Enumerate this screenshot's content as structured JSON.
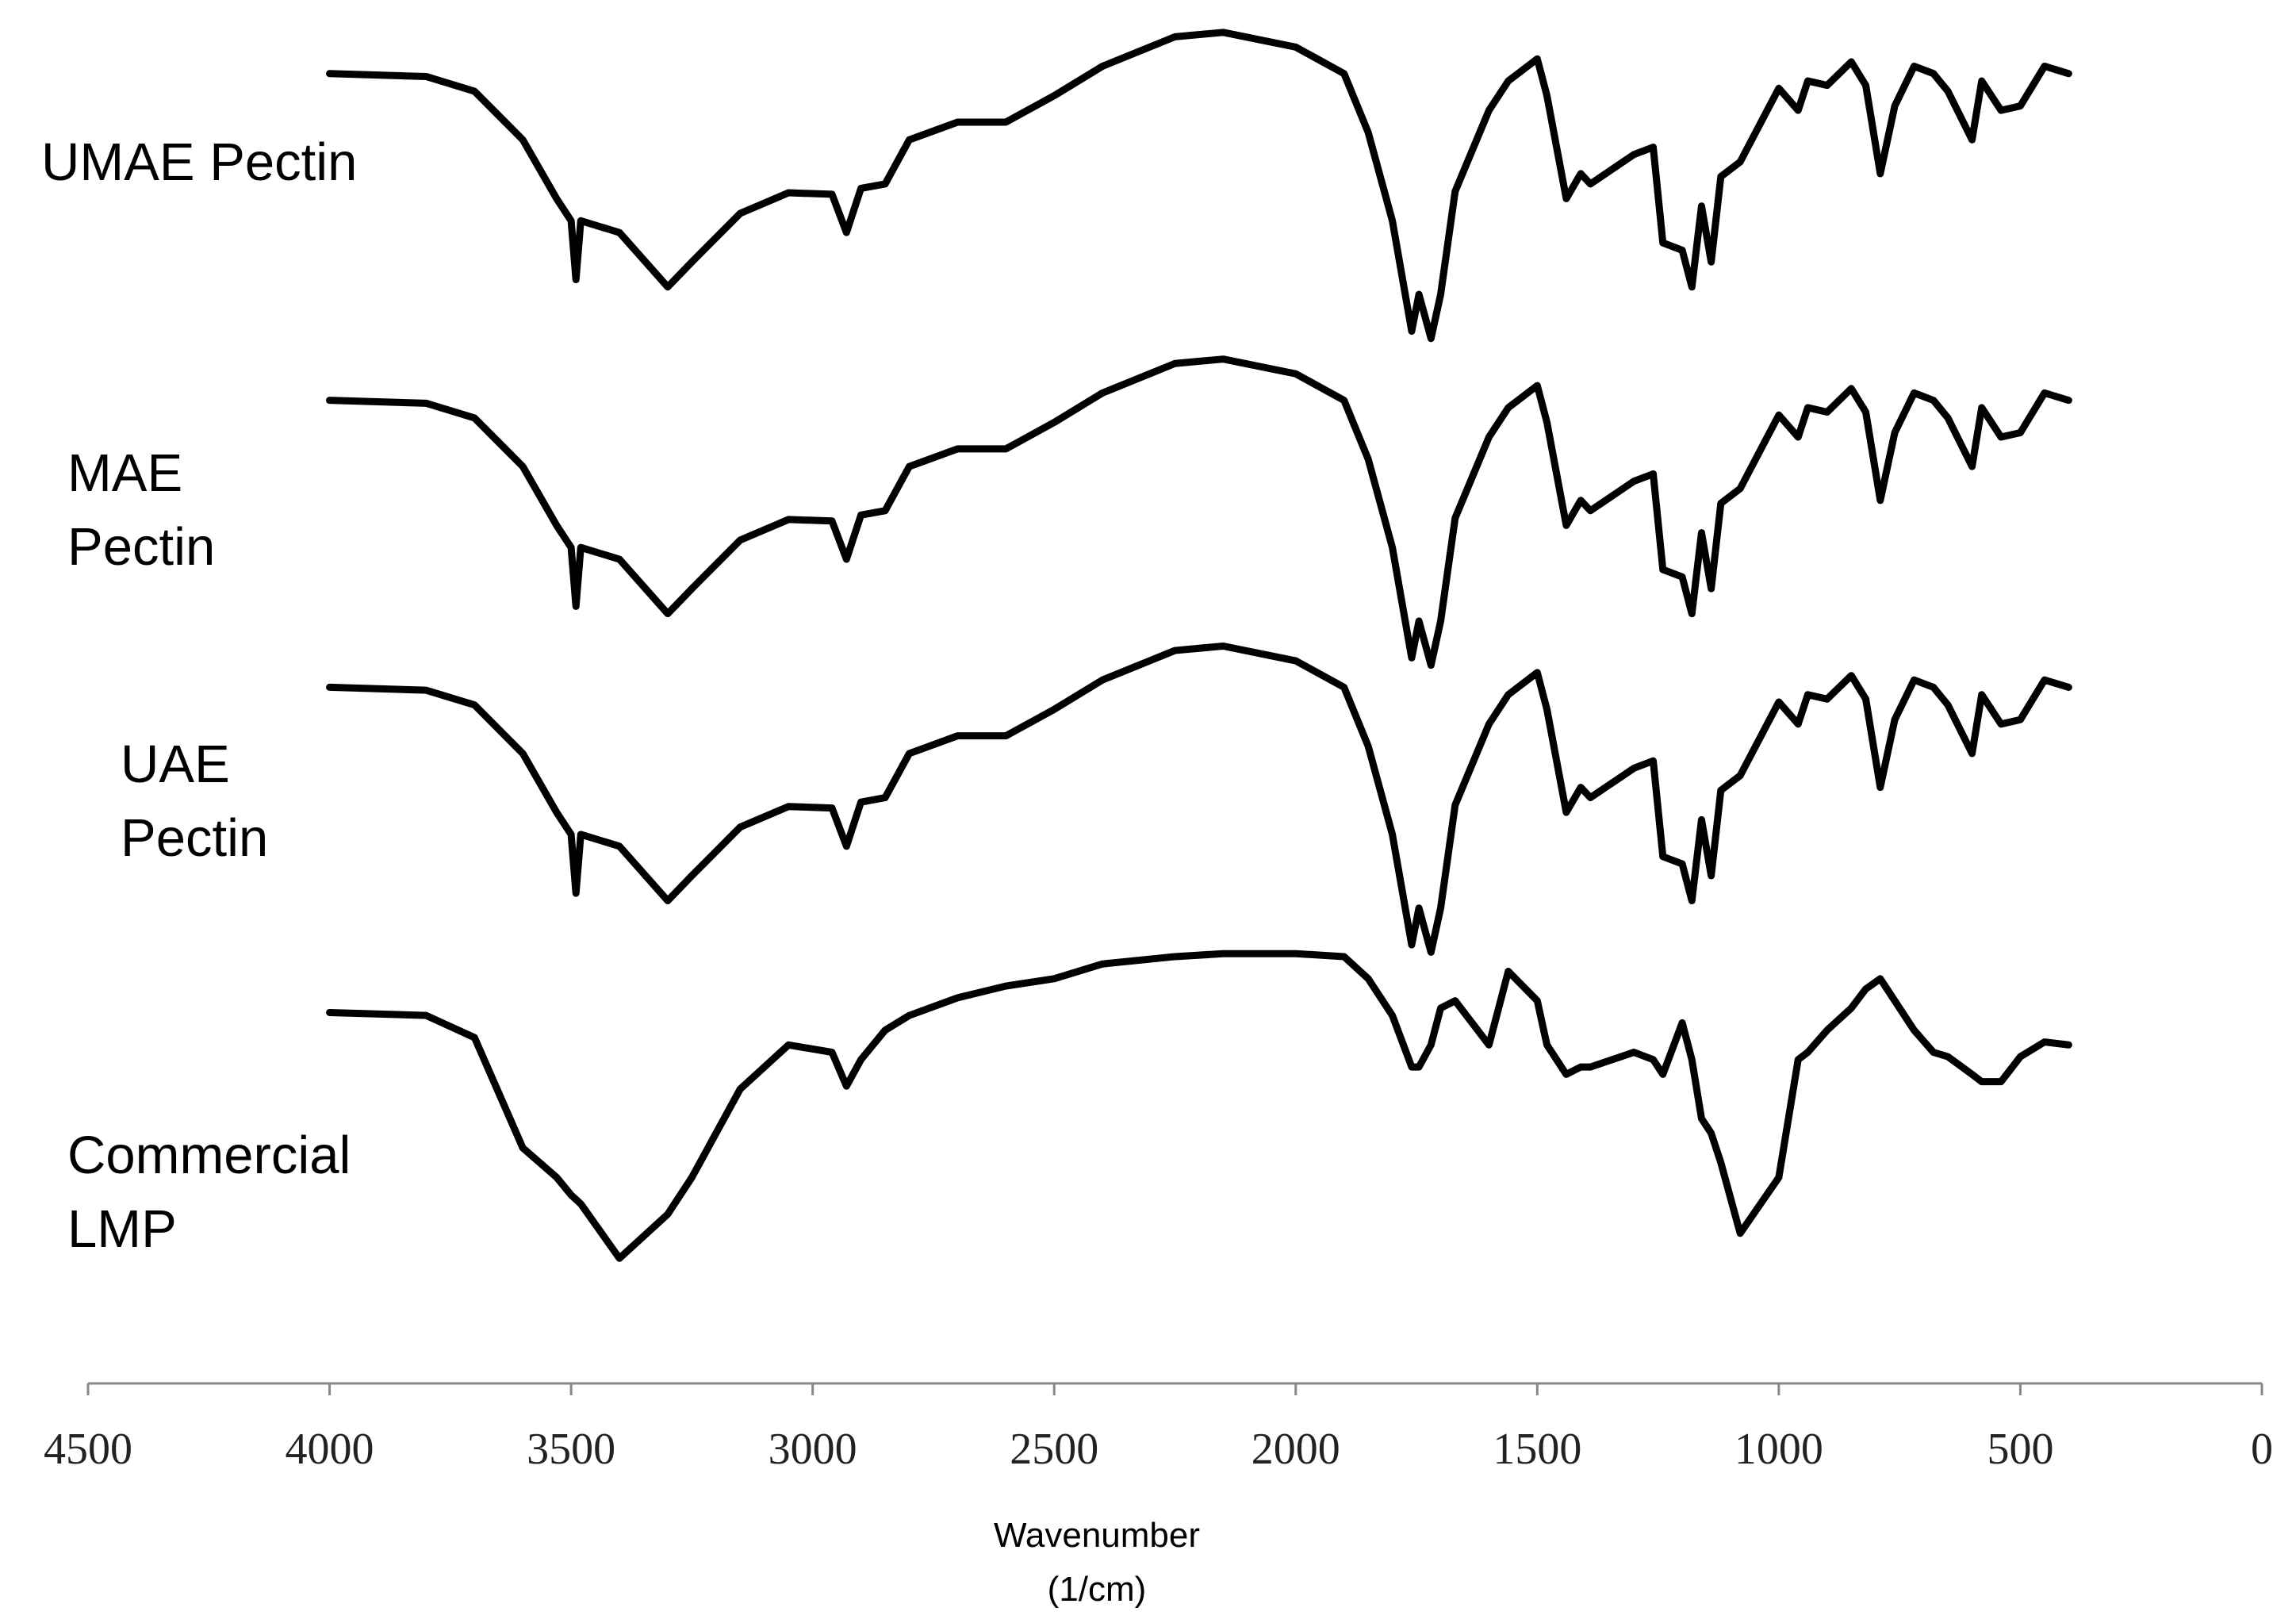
{
  "chart_data": {
    "type": "line",
    "x_label": "Wavenumber\n(1/cm)",
    "x": [
      4000,
      3800,
      3700,
      3600,
      3530,
      3500,
      3490,
      3480,
      3400,
      3300,
      3250,
      3150,
      3050,
      2960,
      2930,
      2900,
      2850,
      2800,
      2700,
      2600,
      2500,
      2400,
      2250,
      2150,
      2000,
      1900,
      1850,
      1800,
      1760,
      1745,
      1720,
      1700,
      1670,
      1600,
      1560,
      1500,
      1480,
      1440,
      1410,
      1390,
      1300,
      1260,
      1240,
      1200,
      1180,
      1160,
      1140,
      1120,
      1080,
      1000,
      960,
      940,
      900,
      850,
      820,
      790,
      760,
      720,
      680,
      650,
      600,
      580,
      540,
      500,
      450,
      400
    ],
    "series": [
      {
        "name": "UMAE Pectin",
        "color": "#000000",
        "values": [
          890,
          888,
          878,
          845,
          805,
          790,
          750,
          790,
          782,
          745,
          762,
          795,
          809,
          808,
          782,
          812,
          815,
          845,
          857,
          857,
          875,
          895,
          915,
          918,
          908,
          890,
          850,
          790,
          715,
          740,
          710,
          740,
          810,
          865,
          885,
          900,
          875,
          805,
          822,
          815,
          835,
          840,
          775,
          770,
          745,
          800,
          762,
          820,
          830,
          880,
          865,
          885,
          882,
          898,
          882,
          822,
          868,
          895,
          890,
          878,
          845,
          885,
          865,
          868,
          895,
          890
        ]
      },
      {
        "name": "MAE\nPectin",
        "color": "#000000",
        "values": [
          668,
          666,
          656,
          623,
          583,
          568,
          528,
          568,
          560,
          523,
          540,
          573,
          587,
          586,
          560,
          590,
          593,
          623,
          635,
          635,
          653,
          673,
          693,
          696,
          686,
          668,
          628,
          568,
          493,
          518,
          488,
          518,
          588,
          643,
          663,
          678,
          653,
          583,
          600,
          593,
          613,
          618,
          553,
          548,
          523,
          578,
          540,
          598,
          608,
          658,
          643,
          663,
          660,
          676,
          660,
          600,
          646,
          673,
          668,
          656,
          623,
          663,
          643,
          646,
          673,
          668
        ]
      },
      {
        "name": "UAE\nPectin",
        "color": "#000000",
        "values": [
          473,
          471,
          461,
          428,
          388,
          373,
          333,
          373,
          365,
          328,
          345,
          378,
          392,
          391,
          365,
          395,
          398,
          428,
          440,
          440,
          458,
          478,
          498,
          501,
          491,
          473,
          433,
          373,
          298,
          323,
          293,
          323,
          393,
          448,
          468,
          483,
          458,
          388,
          405,
          398,
          418,
          423,
          358,
          353,
          328,
          383,
          345,
          403,
          413,
          463,
          448,
          468,
          465,
          481,
          465,
          405,
          451,
          478,
          473,
          461,
          428,
          468,
          448,
          451,
          478,
          473
        ]
      },
      {
        "name": "Commercial\nLMP",
        "color": "#000000",
        "values": [
          252,
          250,
          235,
          160,
          140,
          128,
          125,
          122,
          85,
          115,
          140,
          200,
          230,
          225,
          202,
          220,
          240,
          250,
          262,
          270,
          275,
          285,
          290,
          292,
          292,
          290,
          275,
          250,
          215,
          215,
          230,
          255,
          260,
          230,
          280,
          260,
          230,
          210,
          215,
          215,
          225,
          220,
          210,
          245,
          220,
          180,
          170,
          150,
          102,
          140,
          220,
          225,
          240,
          255,
          268,
          275,
          260,
          240,
          225,
          222,
          210,
          205,
          205,
          222,
          232,
          230
        ]
      }
    ],
    "xlim": [
      4500,
      0
    ],
    "xticks": [
      4500,
      4000,
      3500,
      3000,
      2500,
      2000,
      1500,
      1000,
      500,
      0
    ],
    "ylim": [
      0,
      940
    ]
  }
}
